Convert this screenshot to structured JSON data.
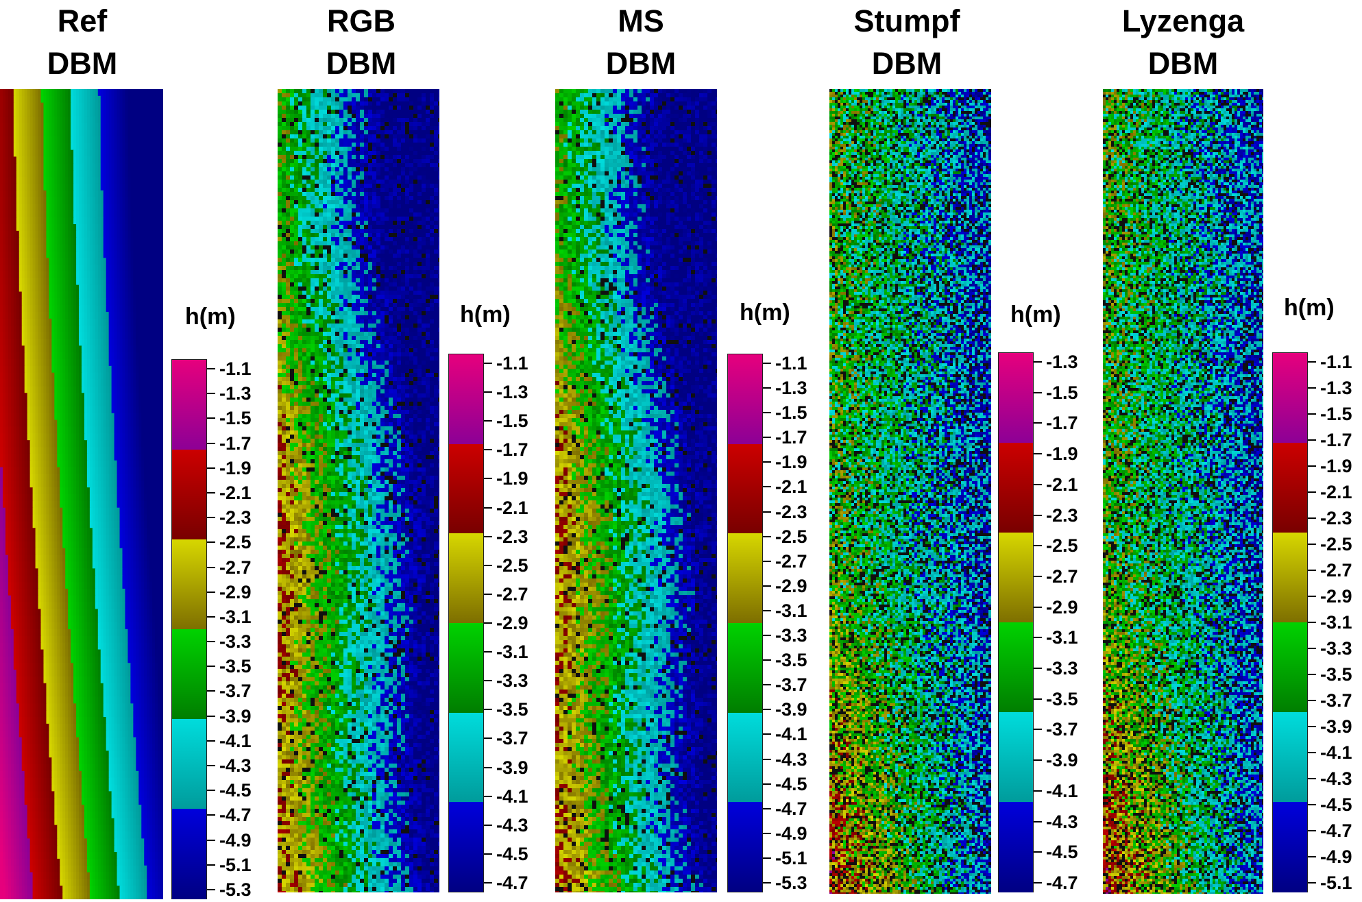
{
  "panels": [
    {
      "title": [
        "Ref",
        "DBM"
      ],
      "legend_title": "h(m)",
      "map_type": "smooth",
      "ticks": [
        "-1.1",
        "-1.3",
        "-1.5",
        "-1.7",
        "-1.9",
        "-2.1",
        "-2.3",
        "-2.5",
        "-2.7",
        "-2.9",
        "-3.1",
        "-3.3",
        "-3.5",
        "-3.7",
        "-3.9",
        "-4.1",
        "-4.3",
        "-4.5",
        "-4.7",
        "-4.9",
        "-5.1",
        "-5.3"
      ]
    },
    {
      "title": [
        "RGB",
        "DBM"
      ],
      "legend_title": "h(m)",
      "map_type": "blocky",
      "ticks": [
        "-1.1",
        "-1.3",
        "-1.5",
        "-1.7",
        "-1.9",
        "-2.1",
        "-2.3",
        "-2.5",
        "-2.7",
        "-2.9",
        "-3.1",
        "-3.3",
        "-3.5",
        "-3.7",
        "-3.9",
        "-4.1",
        "-4.3",
        "-4.5",
        "-4.7"
      ]
    },
    {
      "title": [
        "MS",
        "DBM"
      ],
      "legend_title": "h(m)",
      "map_type": "blocky",
      "ticks": [
        "-1.1",
        "-1.3",
        "-1.5",
        "-1.7",
        "-1.9",
        "-2.1",
        "-2.3",
        "-2.5",
        "-2.7",
        "-2.9",
        "-3.1",
        "-3.3",
        "-3.5",
        "-3.7",
        "-3.9",
        "-4.1",
        "-4.3",
        "-4.5",
        "-4.7",
        "-4.9",
        "-5.1",
        "-5.3"
      ]
    },
    {
      "title": [
        "Stumpf",
        "DBM"
      ],
      "legend_title": "h(m)",
      "map_type": "noisy",
      "ticks": [
        "-1.3",
        "-1.5",
        "-1.7",
        "-1.9",
        "-2.1",
        "-2.3",
        "-2.5",
        "-2.7",
        "-2.9",
        "-3.1",
        "-3.3",
        "-3.5",
        "-3.7",
        "-3.9",
        "-4.1",
        "-4.3",
        "-4.5",
        "-4.7"
      ]
    },
    {
      "title": [
        "Lyzenga",
        "DBM"
      ],
      "legend_title": "h(m)",
      "map_type": "noisy",
      "ticks": [
        "-1.1",
        "-1.3",
        "-1.5",
        "-1.7",
        "-1.9",
        "-2.1",
        "-2.3",
        "-2.5",
        "-2.7",
        "-2.9",
        "-3.1",
        "-3.3",
        "-3.5",
        "-3.7",
        "-3.9",
        "-4.1",
        "-4.3",
        "-4.5",
        "-4.7",
        "-4.9",
        "-5.1"
      ]
    }
  ],
  "colormap": {
    "top_hex": [
      "#e6007d",
      "#cc0000",
      "#d7d700",
      "#00d200",
      "#00dcdc",
      "#0000dc"
    ],
    "bottom_hex": [
      "#8c0096",
      "#780000",
      "#7d6e00",
      "#007d00",
      "#009b9b",
      "#000082"
    ]
  }
}
